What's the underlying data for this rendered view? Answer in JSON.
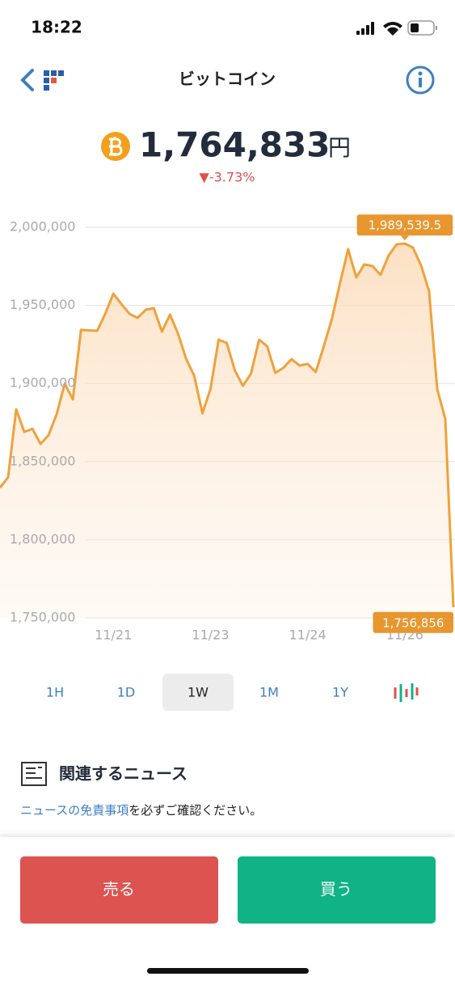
{
  "status_bar": {
    "time": "18:22"
  },
  "header": {
    "title": "ビットコイン"
  },
  "price": {
    "value": "1,764,833",
    "currency": "円",
    "change": "▼-3.73%"
  },
  "chart_data": {
    "type": "line",
    "color": "#f0a13a",
    "values": [
      1833300,
      1840000,
      1883500,
      1869000,
      1871000,
      1861300,
      1867000,
      1880400,
      1900000,
      1889800,
      1934300,
      1934000,
      1933700,
      1944600,
      1957500,
      1950800,
      1944600,
      1942000,
      1947200,
      1948200,
      1933200,
      1944100,
      1931700,
      1915600,
      1904800,
      1880900,
      1896500,
      1928000,
      1926000,
      1908400,
      1898500,
      1906300,
      1928000,
      1923900,
      1906800,
      1910000,
      1915600,
      1911500,
      1912500,
      1907300,
      1923900,
      1941500,
      1964300,
      1986000,
      1967900,
      1976200,
      1975200,
      1969500,
      1981900,
      1989100,
      1989539.5,
      1987000,
      1975700,
      1959100,
      1896500,
      1877300,
      1756856
    ],
    "ylim": [
      1750000,
      2000000
    ],
    "yticks": [
      {
        "value": 1750000,
        "label": "1,750,000"
      },
      {
        "value": 1800000,
        "label": "1,800,000"
      },
      {
        "value": 1850000,
        "label": "1,850,000"
      },
      {
        "value": 1900000,
        "label": "1,900,000"
      },
      {
        "value": 1950000,
        "label": "1,950,000"
      },
      {
        "value": 2000000,
        "label": "2,000,000"
      }
    ],
    "xticks": [
      {
        "value": 14,
        "label": "11/21"
      },
      {
        "value": 26,
        "label": "11/23"
      },
      {
        "value": 38,
        "label": "11/24"
      },
      {
        "value": 50,
        "label": "11/26"
      }
    ],
    "grid": true,
    "max_label": {
      "value": 1989539.5,
      "label": "1,989,539.5"
    },
    "min_label": {
      "value": 1756856,
      "label": "1,756,856"
    }
  },
  "ranges": [
    "1H",
    "1D",
    "1W",
    "1M",
    "1Y"
  ],
  "selected_range": "1W",
  "news": {
    "heading": "関連するニュース",
    "link": "ニュースの免責事項",
    "notice": "を必ずご確認ください。"
  },
  "buttons": {
    "sell": "売る",
    "buy": "買う"
  }
}
